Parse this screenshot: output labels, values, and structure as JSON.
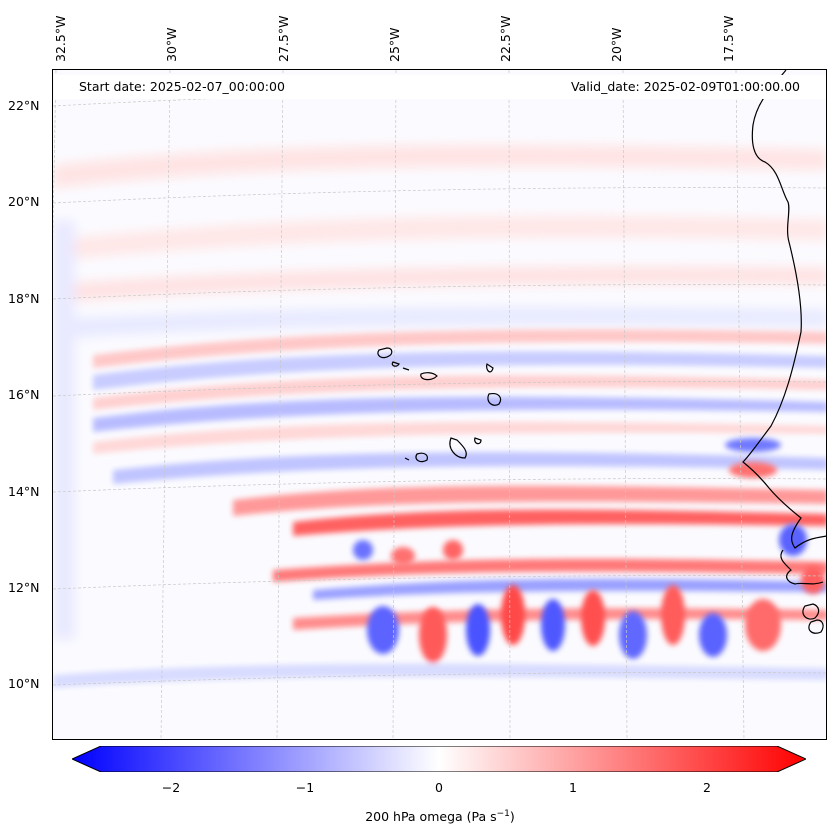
{
  "header": {
    "start_date": "Start date: 2025-02-07_00:00:00",
    "valid_date": "Valid_date: 2025-02-09T01:00:00.00"
  },
  "map": {
    "lon_labels": [
      "32.5°W",
      "30°W",
      "27.5°W",
      "25°W",
      "22.5°W",
      "20°W",
      "17.5°W"
    ],
    "lat_labels": [
      "22°N",
      "20°N",
      "18°N",
      "16°N",
      "14°N",
      "12°N",
      "10°N"
    ],
    "coastline_color": "#000000",
    "gridline_color": "#c8c8c8"
  },
  "colorbar": {
    "ticks": [
      "−2",
      "−1",
      "0",
      "1",
      "2"
    ],
    "label_prefix": "200 hPa omega (Pa s",
    "label_exp": "−1",
    "label_suffix": ")",
    "color_min": "#0000ff",
    "color_mid": "#ffffff",
    "color_max": "#ff0000",
    "range": [
      -2.7,
      2.7
    ]
  }
}
